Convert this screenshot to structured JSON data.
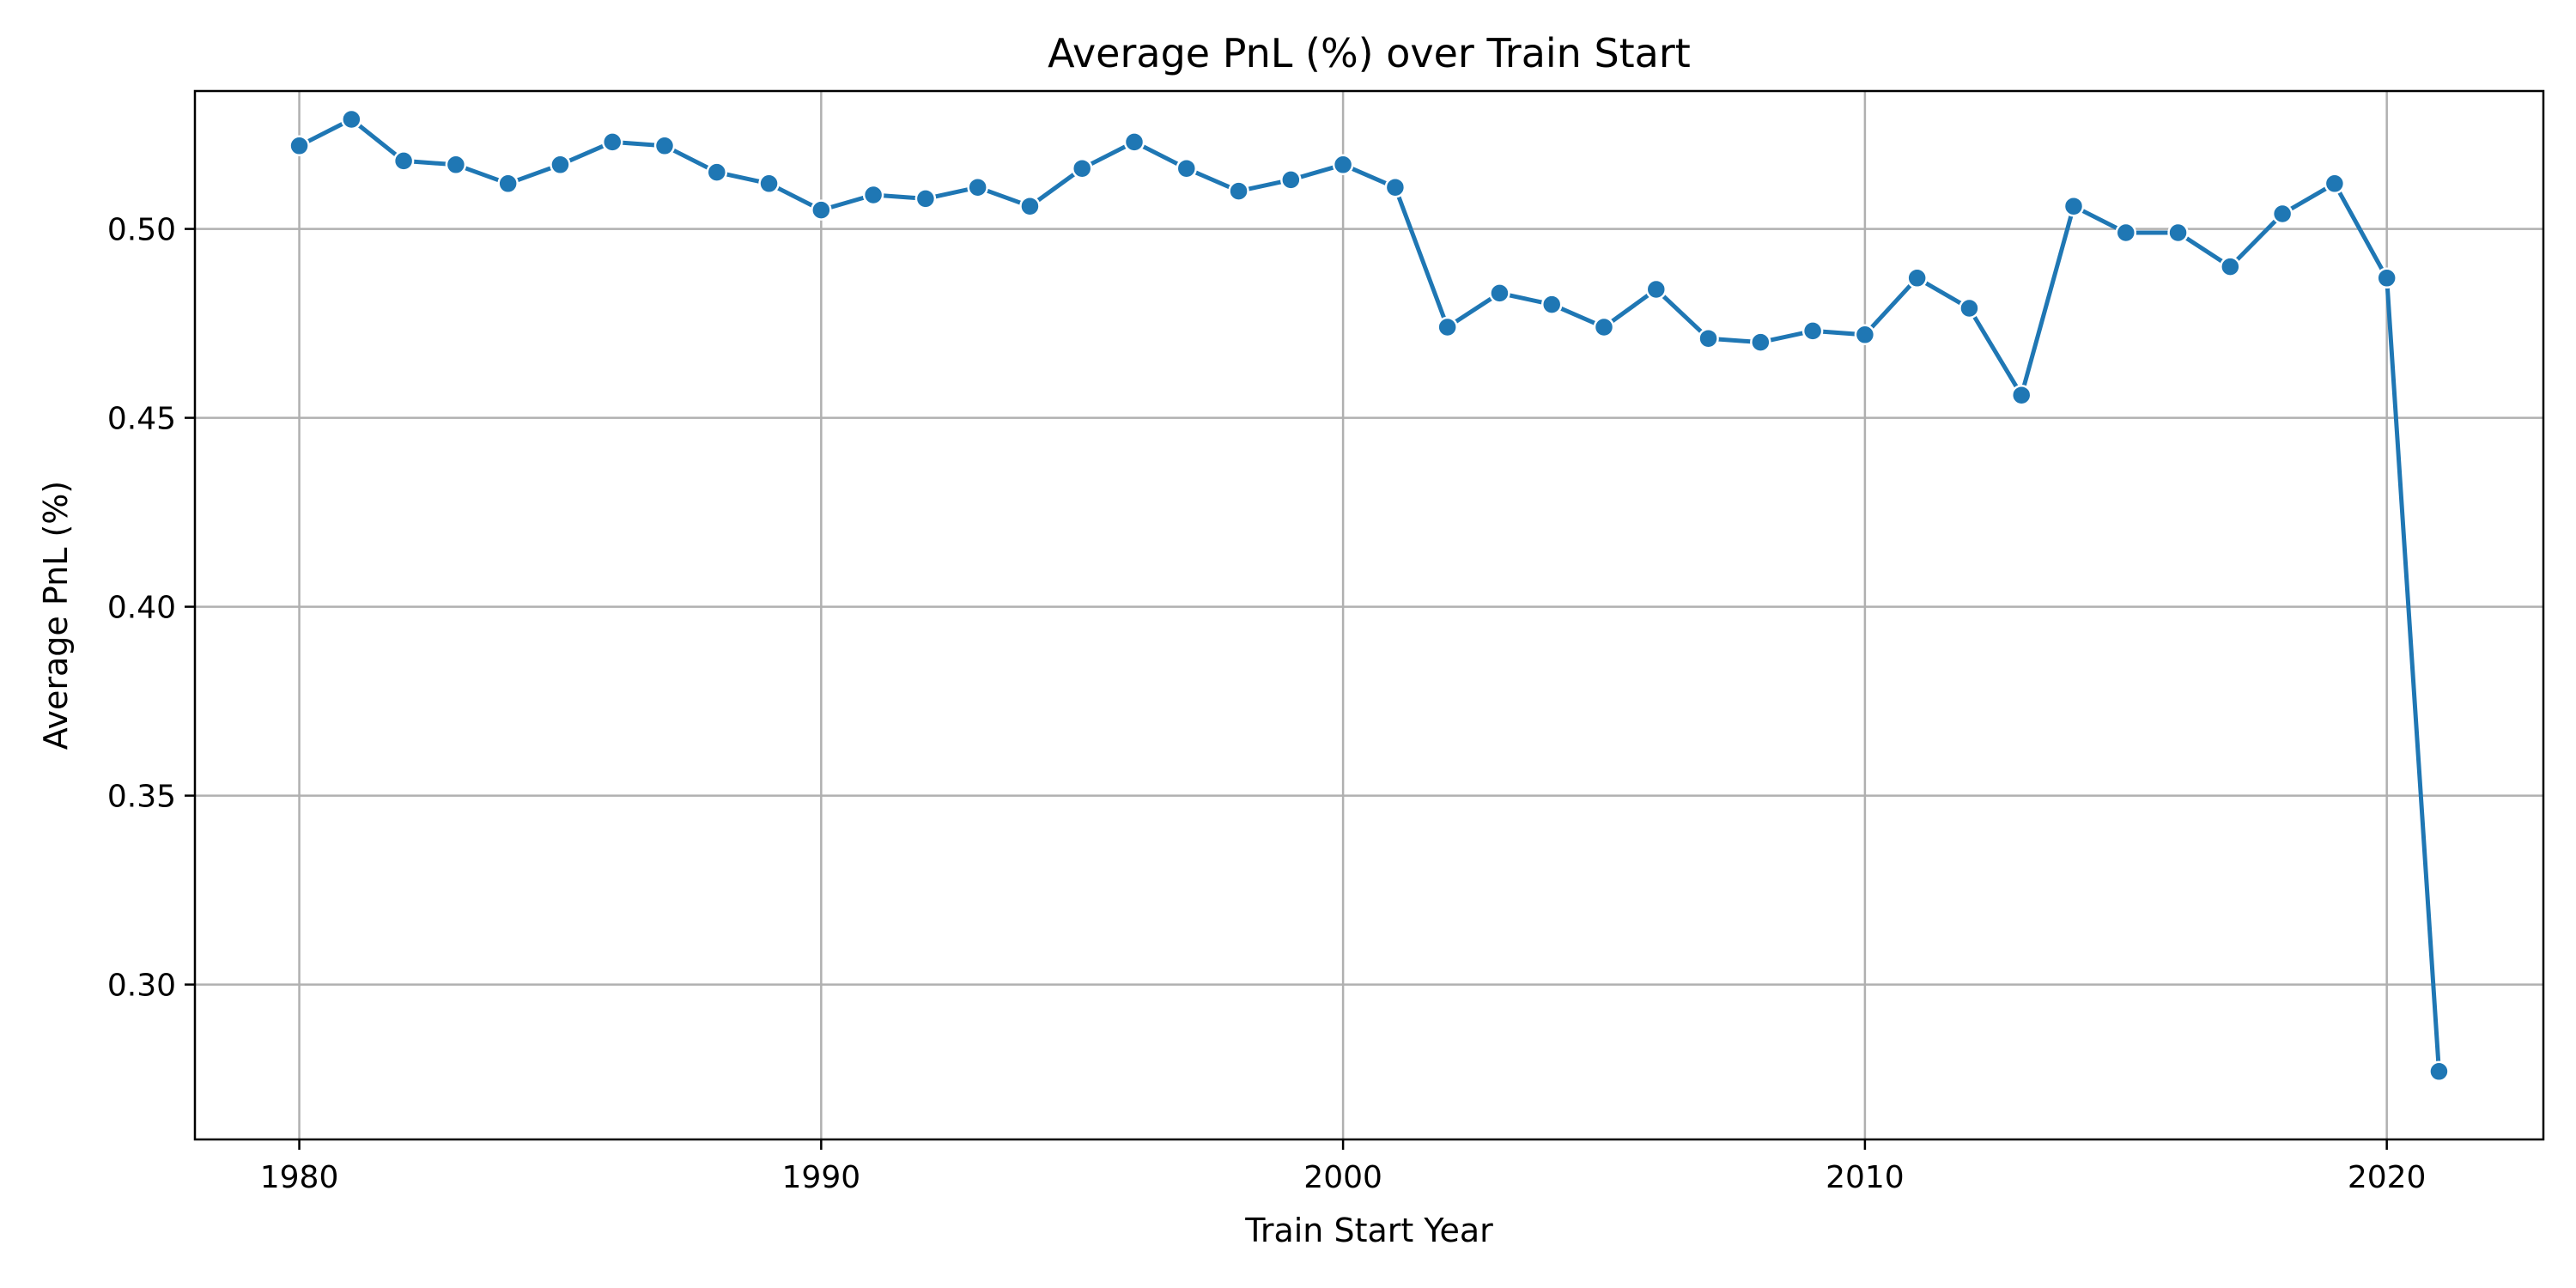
{
  "chart_data": {
    "type": "line",
    "title": "Average PnL (%) over Train Start",
    "xlabel": "Train Start Year",
    "ylabel": "Average PnL (%)",
    "xlim": [
      1978,
      2023
    ],
    "ylim": [
      0.259,
      0.5365
    ],
    "x_ticks": [
      1980,
      1990,
      2000,
      2010,
      2020
    ],
    "x_tick_labels": [
      "1980",
      "1990",
      "2000",
      "2010",
      "2020"
    ],
    "y_ticks": [
      0.3,
      0.35,
      0.4,
      0.45,
      0.5
    ],
    "y_tick_labels": [
      "0.30",
      "0.35",
      "0.40",
      "0.45",
      "0.50"
    ],
    "grid": true,
    "color": "#1f77b4",
    "series": [
      {
        "x": [
          1980,
          1981,
          1982,
          1983,
          1984,
          1985,
          1986,
          1987,
          1988,
          1989,
          1990,
          1991,
          1992,
          1993,
          1994,
          1995,
          1996,
          1997,
          1998,
          1999,
          2000,
          2001,
          2002,
          2003,
          2004,
          2005,
          2006,
          2007,
          2008,
          2009,
          2010,
          2011,
          2012,
          2013,
          2014,
          2015,
          2016,
          2017,
          2018,
          2019,
          2020,
          2021
        ],
        "values": [
          0.522,
          0.529,
          0.518,
          0.517,
          0.512,
          0.517,
          0.523,
          0.522,
          0.515,
          0.512,
          0.505,
          0.509,
          0.508,
          0.511,
          0.506,
          0.516,
          0.523,
          0.516,
          0.51,
          0.513,
          0.517,
          0.511,
          0.474,
          0.483,
          0.48,
          0.474,
          0.484,
          0.471,
          0.47,
          0.473,
          0.472,
          0.487,
          0.479,
          0.456,
          0.506,
          0.499,
          0.499,
          0.49,
          0.504,
          0.512,
          0.487,
          0.277
        ]
      }
    ]
  }
}
